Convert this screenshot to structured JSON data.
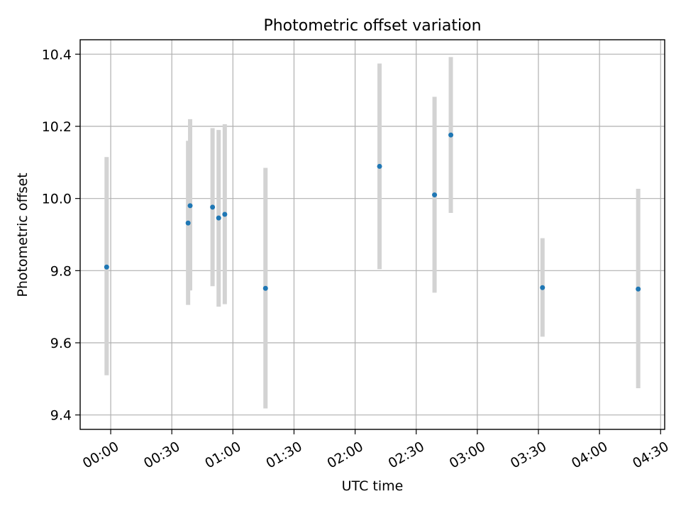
{
  "chart_data": {
    "type": "scatter",
    "title": "Photometric offset variation",
    "xlabel": "UTC time",
    "ylabel": "Photometric offset",
    "x_tick_labels": [
      "00:00",
      "00:30",
      "01:00",
      "01:30",
      "02:00",
      "02:30",
      "03:00",
      "03:30",
      "04:00",
      "04:30"
    ],
    "x_tick_values_min": [
      0,
      30,
      60,
      90,
      120,
      150,
      180,
      210,
      240,
      270
    ],
    "y_tick_labels": [
      "9.4",
      "9.6",
      "9.8",
      "10.0",
      "10.2",
      "10.4"
    ],
    "y_tick_values": [
      9.4,
      9.6,
      9.8,
      10.0,
      10.2,
      10.4
    ],
    "xlim": [
      "-00:15",
      "04:32"
    ],
    "ylim": [
      9.36,
      10.44
    ],
    "grid": true,
    "point_color": "#1f77b4",
    "errorbar_color": "#d3d3d3",
    "points": [
      {
        "time": "23:58",
        "y": 9.81,
        "ylow": 9.51,
        "yhigh": 10.115
      },
      {
        "time": "00:38",
        "y": 9.932,
        "ylow": 9.705,
        "yhigh": 10.16
      },
      {
        "time": "00:39",
        "y": 9.98,
        "ylow": 9.745,
        "yhigh": 10.22
      },
      {
        "time": "00:50",
        "y": 9.976,
        "ylow": 9.757,
        "yhigh": 10.195
      },
      {
        "time": "00:53",
        "y": 9.946,
        "ylow": 9.7,
        "yhigh": 10.19
      },
      {
        "time": "00:56",
        "y": 9.956,
        "ylow": 9.707,
        "yhigh": 10.206
      },
      {
        "time": "01:16",
        "y": 9.751,
        "ylow": 9.418,
        "yhigh": 10.085
      },
      {
        "time": "02:12",
        "y": 10.089,
        "ylow": 9.804,
        "yhigh": 10.374
      },
      {
        "time": "02:39",
        "y": 10.01,
        "ylow": 9.739,
        "yhigh": 10.282
      },
      {
        "time": "02:47",
        "y": 10.176,
        "ylow": 9.96,
        "yhigh": 10.392
      },
      {
        "time": "03:32",
        "y": 9.753,
        "ylow": 9.617,
        "yhigh": 9.89
      },
      {
        "time": "04:19",
        "y": 9.749,
        "ylow": 9.474,
        "yhigh": 10.027
      }
    ]
  }
}
